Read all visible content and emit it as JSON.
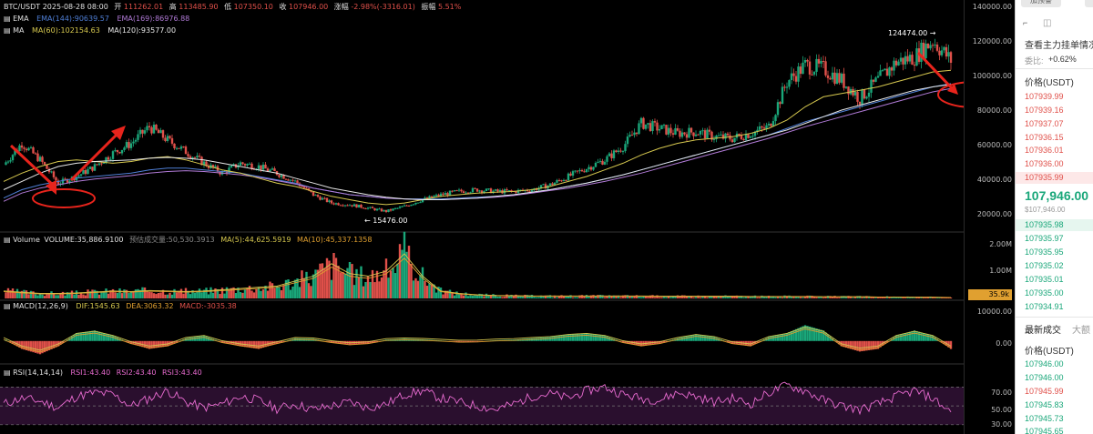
{
  "header": {
    "symbol_date": "BTC/USDT  2025-08-28 08:00",
    "open_label": "开",
    "open": "111262.01",
    "high_label": "高",
    "high": "113485.90",
    "low_label": "低",
    "low": "107350.10",
    "close_label": "收",
    "close": "107946.00",
    "change_label": "涨幅",
    "change": "-2.98%(-3316.01)",
    "amp_label": "振幅",
    "amp": "5.51%"
  },
  "ema": {
    "name": "EMA",
    "ema144": "EMA(144):90639.57",
    "ema169": "EMA(169):86976.88"
  },
  "ma": {
    "name": "MA",
    "ma60": "MA(60):102154.63",
    "ma120": "MA(120):93577.00"
  },
  "volume_header": {
    "name": "Volume",
    "volume": "VOLUME:35,886.9100",
    "forecast": "预估成交量:50,530.3913",
    "ma5": "MA(5):44,625.5919",
    "ma10": "MA(10):45,337.1358"
  },
  "macd_header": {
    "name": "MACD(12,26,9)",
    "dif": "DIF:1545.63",
    "dea": "DEA:3063.32",
    "macd": "MACD:-3035.38"
  },
  "rsi_header": {
    "name": "RSI(14,14,14)",
    "rsi1": "RSI1:43.40",
    "rsi2": "RSI2:43.40",
    "rsi3": "RSI3:43.40"
  },
  "annotations": {
    "peak_label": "124474.00 →",
    "low_label": "← 15476.00"
  },
  "price_axis": [
    "140000.00",
    "120000.00",
    "100000.00",
    "80000.00",
    "60000.00",
    "40000.00",
    "20000.00"
  ],
  "volume_axis": [
    "2.00M",
    "1.00M"
  ],
  "volume_badge": "35.9k",
  "macd_axis": [
    "10000.00",
    "0.00"
  ],
  "rsi_axis": [
    "70.00",
    "50.00",
    "30.00"
  ],
  "orderbook": {
    "top_button": "加预警",
    "title": "查看主力挂单情况",
    "ratio_label": "委比:",
    "ratio_value": "+0.62%",
    "price_header": "价格(USDT)",
    "asks": [
      "107939.99",
      "107939.16",
      "107937.07",
      "107936.15",
      "107936.01",
      "107936.00",
      "107935.99"
    ],
    "last_price": "107,946.00",
    "last_price_sub": "$107,946.00",
    "bids": [
      "107935.98",
      "107935.97",
      "107935.95",
      "107935.02",
      "107935.01",
      "107935.00",
      "107934.91"
    ],
    "trades_tab": "最新成交",
    "trades_tab2": "大额",
    "trades_header": "价格(USDT)",
    "trades": [
      {
        "price": "107946.00",
        "side": "green"
      },
      {
        "price": "107946.00",
        "side": "green"
      },
      {
        "price": "107945.99",
        "side": "red"
      },
      {
        "price": "107945.83",
        "side": "green"
      },
      {
        "price": "107945.73",
        "side": "green"
      },
      {
        "price": "107945.65",
        "side": "green"
      }
    ]
  },
  "colors": {
    "up": "#1aa77a",
    "down": "#e0504a",
    "ema144": "#4f7fd6",
    "ema169": "#b07ad6",
    "ma60": "#d6c84f",
    "ma120": "#e8e8e8",
    "annotation": "#e8241c",
    "rsi": "#e86bd0"
  },
  "chart_data": [
    {
      "type": "candlestick",
      "title": "BTC/USDT",
      "ylim": [
        10000,
        140000
      ],
      "series": [
        {
          "name": "K",
          "x": [
            0,
            20,
            40,
            60,
            80,
            100,
            120,
            140,
            160,
            180,
            200,
            220,
            240,
            260,
            280,
            300,
            320,
            340,
            360,
            380,
            400,
            420,
            440,
            460,
            480,
            500,
            520,
            540,
            560,
            580,
            600,
            620,
            640,
            660,
            680,
            700,
            720,
            740,
            760,
            780,
            800,
            820,
            840,
            860,
            880,
            900,
            920,
            940,
            960,
            980,
            1000,
            1020,
            1040
          ],
          "values": [
            45000,
            58000,
            48000,
            34000,
            38000,
            44000,
            52000,
            58000,
            68000,
            60000,
            53000,
            46000,
            40000,
            46000,
            44000,
            40000,
            35000,
            27000,
            22000,
            21000,
            19000,
            17000,
            20000,
            24000,
            27000,
            29000,
            30000,
            29000,
            29000,
            30000,
            33000,
            38000,
            43000,
            48000,
            56000,
            70000,
            67000,
            64000,
            65000,
            62000,
            61000,
            64000,
            68000,
            95000,
            105000,
            103000,
            96000,
            85000,
            96000,
            107000,
            110000,
            120000,
            108000
          ]
        },
        {
          "name": "EMA(144)",
          "values": [
            25000,
            30000,
            33000,
            35000,
            37000,
            38000,
            39000,
            40000,
            42000,
            43000,
            43000,
            42000,
            41000,
            40000,
            38000,
            36000,
            34000,
            31000,
            29000,
            27000,
            26000,
            25000,
            24500,
            24500,
            24500,
            25000,
            25500,
            26000,
            27000,
            28500,
            30000,
            32000,
            34000,
            36500,
            39000,
            42000,
            45000,
            48000,
            51000,
            54000,
            57000,
            60000,
            63000,
            67000,
            71000,
            74000,
            77000,
            80000,
            83000,
            86000,
            89000,
            92000,
            94000
          ]
        },
        {
          "name": "EMA(169)",
          "values": [
            23000,
            28000,
            31000,
            33000,
            35000,
            36500,
            37500,
            38500,
            40000,
            41000,
            41500,
            41000,
            40000,
            39000,
            37500,
            35500,
            33500,
            31000,
            29000,
            27000,
            26000,
            25000,
            24500,
            24000,
            24000,
            24500,
            25000,
            25500,
            26500,
            28000,
            29500,
            31000,
            33000,
            35000,
            37500,
            40000,
            43000,
            46000,
            49000,
            52000,
            55000,
            58000,
            61000,
            64500,
            68000,
            71000,
            74000,
            77000,
            80000,
            83000,
            86000,
            89000,
            91000
          ]
        },
        {
          "name": "MA(60)",
          "values": [
            35000,
            40000,
            44000,
            47000,
            48000,
            47000,
            46000,
            47000,
            49000,
            50000,
            48000,
            45000,
            42000,
            40000,
            37000,
            34000,
            32000,
            29000,
            26000,
            24000,
            22000,
            21000,
            22000,
            24000,
            26000,
            27000,
            28000,
            28500,
            29000,
            30000,
            32000,
            35000,
            38000,
            42000,
            46000,
            51000,
            55000,
            58000,
            60000,
            61000,
            62000,
            64000,
            67000,
            72000,
            80000,
            86000,
            88000,
            90000,
            92000,
            95000,
            98000,
            101000,
            102000
          ]
        },
        {
          "name": "MA(120)",
          "values": [
            30000,
            35000,
            40000,
            44000,
            46000,
            47000,
            47500,
            48000,
            49000,
            49500,
            49000,
            48000,
            46000,
            44000,
            42000,
            40000,
            37000,
            34000,
            31000,
            29000,
            27000,
            25500,
            24500,
            24000,
            24000,
            24500,
            25000,
            26000,
            27000,
            28500,
            30000,
            32000,
            34000,
            36500,
            39000,
            42000,
            45000,
            48000,
            51000,
            54000,
            57000,
            60000,
            63000,
            66000,
            70000,
            74000,
            78000,
            81000,
            84000,
            87000,
            90000,
            92000,
            93500
          ]
        }
      ],
      "annotations": [
        "124474.00",
        "15476.00"
      ]
    },
    {
      "type": "bar",
      "title": "Volume",
      "ylim": [
        0,
        2200000
      ],
      "values": [
        300000,
        250000,
        200000,
        200000,
        220000,
        260000,
        300000,
        280000,
        320000,
        300000,
        280000,
        300000,
        350000,
        400000,
        450000,
        500000,
        700000,
        900000,
        1400000,
        1000000,
        900000,
        1100000,
        1800000,
        900000,
        300000,
        200000,
        150000,
        120000,
        110000,
        100000,
        100000,
        100000,
        100000,
        100000,
        100000,
        100000,
        90000,
        90000,
        90000,
        90000,
        90000,
        80000,
        80000,
        80000,
        80000,
        70000,
        70000,
        70000,
        60000,
        60000,
        50000,
        50000,
        36000
      ]
    },
    {
      "type": "bar",
      "title": "MACD(12,26,9)",
      "ylim": [
        -8000,
        12000
      ],
      "values": [
        1000,
        -3000,
        -5000,
        -2000,
        3000,
        4000,
        2000,
        -1000,
        -3000,
        -2000,
        1000,
        2000,
        -500,
        -2000,
        -3000,
        -1000,
        1000,
        800,
        -500,
        -1500,
        -1000,
        500,
        800,
        600,
        200,
        -300,
        -200,
        300,
        500,
        1000,
        1500,
        2500,
        3000,
        2000,
        -500,
        -2000,
        -1000,
        1000,
        2500,
        1500,
        -1000,
        -2000,
        1500,
        3000,
        6000,
        4000,
        -2000,
        -4000,
        -3000,
        2000,
        4000,
        2000,
        -3035
      ]
    },
    {
      "type": "line",
      "title": "RSI(14,14,14)",
      "ylim": [
        25,
        80
      ],
      "series": [
        {
          "name": "RSI",
          "values": [
            52,
            58,
            55,
            48,
            60,
            64,
            62,
            50,
            58,
            66,
            54,
            48,
            52,
            60,
            56,
            47,
            52,
            46,
            50,
            54,
            48,
            52,
            62,
            66,
            58,
            54,
            50,
            46,
            52,
            60,
            63,
            58,
            66,
            70,
            62,
            58,
            56,
            64,
            60,
            54,
            58,
            52,
            64,
            72,
            66,
            56,
            50,
            46,
            52,
            60,
            66,
            58,
            43.4
          ]
        }
      ]
    }
  ]
}
